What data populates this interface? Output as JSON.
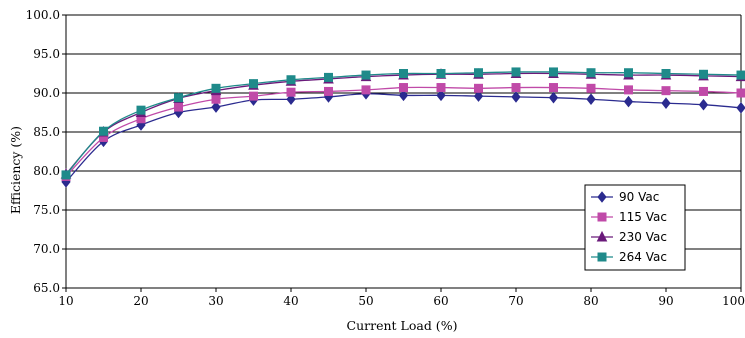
{
  "chart_data": {
    "type": "line",
    "xlabel": "Current Load (%)",
    "ylabel": "Efficiency (%)",
    "xlim": [
      10,
      100
    ],
    "ylim": [
      65,
      100
    ],
    "x_ticks": [
      "10",
      "20",
      "30",
      "40",
      "50",
      "60",
      "70",
      "80",
      "90",
      "100"
    ],
    "y_ticks": [
      "65.0",
      "70.0",
      "75.0",
      "80.0",
      "85.0",
      "90.0",
      "95.0",
      "100.0"
    ],
    "grid": "horizontal",
    "legend_position": "right",
    "x": [
      10,
      15,
      20,
      25,
      30,
      35,
      40,
      45,
      50,
      55,
      60,
      65,
      70,
      75,
      80,
      85,
      90,
      95,
      100
    ],
    "series": [
      {
        "name": "90 Vac",
        "color": "#2b2b8f",
        "marker": "diamond",
        "values": [
          78.6,
          83.8,
          85.9,
          87.5,
          88.2,
          89.1,
          89.2,
          89.5,
          89.9,
          89.7,
          89.7,
          89.6,
          89.5,
          89.4,
          89.2,
          88.9,
          88.7,
          88.5,
          88.1
        ]
      },
      {
        "name": "115 Vac",
        "color": "#c04aa8",
        "marker": "square",
        "values": [
          79.3,
          84.3,
          86.7,
          88.2,
          89.2,
          89.6,
          90.1,
          90.2,
          90.4,
          90.7,
          90.7,
          90.6,
          90.7,
          90.7,
          90.6,
          90.4,
          90.3,
          90.2,
          90.0
        ]
      },
      {
        "name": "230 Vac",
        "color": "#6a1a7a",
        "marker": "triangle",
        "values": [
          79.6,
          85.0,
          87.5,
          89.3,
          90.3,
          91.0,
          91.5,
          91.8,
          92.1,
          92.3,
          92.4,
          92.4,
          92.5,
          92.5,
          92.4,
          92.3,
          92.3,
          92.2,
          92.1
        ]
      },
      {
        "name": "264 Vac",
        "color": "#1f8a8a",
        "marker": "square",
        "values": [
          79.5,
          85.1,
          87.8,
          89.4,
          90.6,
          91.2,
          91.7,
          92.0,
          92.3,
          92.5,
          92.5,
          92.6,
          92.7,
          92.7,
          92.6,
          92.6,
          92.5,
          92.4,
          92.3
        ]
      }
    ]
  }
}
